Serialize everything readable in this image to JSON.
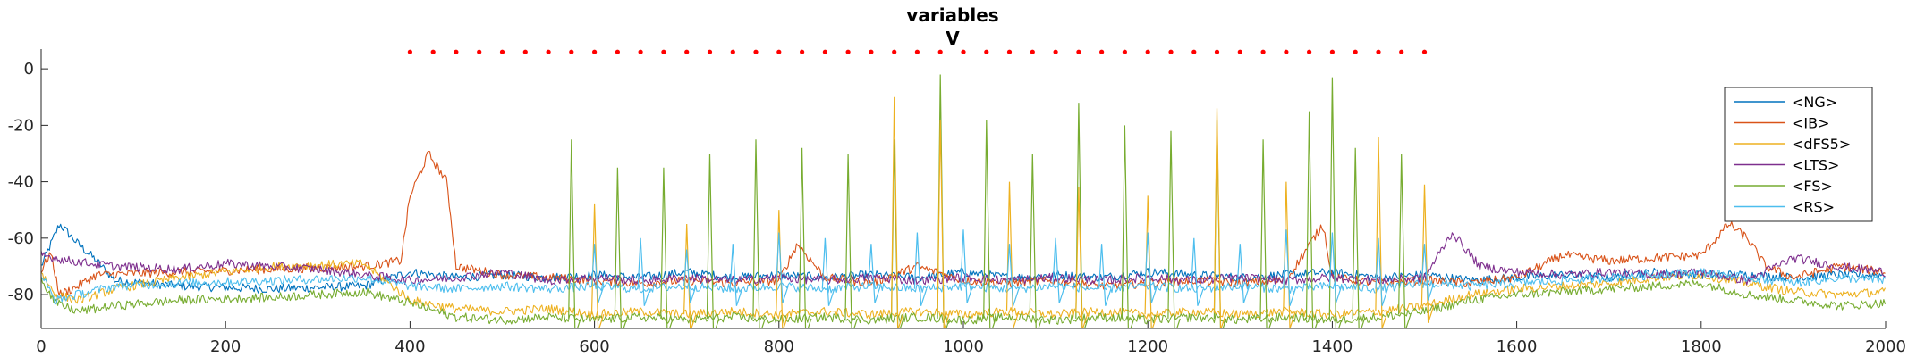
{
  "chart_data": {
    "type": "line",
    "title": "variables",
    "subtitle": "V",
    "xlabel": "",
    "ylabel": "",
    "xlim": [
      0,
      2000
    ],
    "ylim": [
      -92,
      7
    ],
    "xticks": [
      0,
      200,
      400,
      600,
      800,
      1000,
      1200,
      1400,
      1600,
      1800,
      2000
    ],
    "yticks": [
      0,
      -20,
      -40,
      -60,
      -80
    ],
    "grid": false,
    "legend_position": "top-right",
    "stimulus_markers": {
      "color": "#ff0000",
      "y": 6,
      "x": [
        400,
        425,
        450,
        475,
        500,
        525,
        550,
        575,
        600,
        625,
        650,
        675,
        700,
        725,
        750,
        775,
        800,
        825,
        850,
        875,
        900,
        925,
        950,
        975,
        1000,
        1025,
        1050,
        1075,
        1100,
        1125,
        1150,
        1175,
        1200,
        1225,
        1250,
        1275,
        1300,
        1325,
        1350,
        1375,
        1400,
        1425,
        1450,
        1475,
        1500
      ]
    },
    "series": [
      {
        "name": "<NG>",
        "color": "#0072bd",
        "points": [
          [
            0,
            -70
          ],
          [
            20,
            -55
          ],
          [
            40,
            -62
          ],
          [
            60,
            -68
          ],
          [
            80,
            -75
          ],
          [
            150,
            -77
          ],
          [
            250,
            -78
          ],
          [
            350,
            -77
          ],
          [
            400,
            -72
          ],
          [
            450,
            -74
          ],
          [
            500,
            -73
          ],
          [
            550,
            -74
          ],
          [
            600,
            -73
          ],
          [
            650,
            -74
          ],
          [
            700,
            -72
          ],
          [
            750,
            -74
          ],
          [
            800,
            -73
          ],
          [
            850,
            -74
          ],
          [
            900,
            -73
          ],
          [
            950,
            -74
          ],
          [
            1000,
            -72
          ],
          [
            1050,
            -74
          ],
          [
            1100,
            -73
          ],
          [
            1150,
            -74
          ],
          [
            1200,
            -72
          ],
          [
            1250,
            -73
          ],
          [
            1300,
            -74
          ],
          [
            1350,
            -73
          ],
          [
            1400,
            -72
          ],
          [
            1450,
            -74
          ],
          [
            1500,
            -73
          ],
          [
            1550,
            -75
          ],
          [
            1600,
            -74
          ],
          [
            1650,
            -73
          ],
          [
            1700,
            -74
          ],
          [
            1750,
            -72
          ],
          [
            1800,
            -73
          ],
          [
            1850,
            -73
          ],
          [
            1900,
            -74
          ],
          [
            1950,
            -73
          ],
          [
            2000,
            -73
          ]
        ]
      },
      {
        "name": "<IB>",
        "color": "#d95319",
        "points": [
          [
            0,
            -72
          ],
          [
            10,
            -65
          ],
          [
            20,
            -80
          ],
          [
            40,
            -77
          ],
          [
            60,
            -73
          ],
          [
            150,
            -72
          ],
          [
            250,
            -71
          ],
          [
            350,
            -70
          ],
          [
            390,
            -68
          ],
          [
            400,
            -45
          ],
          [
            420,
            -30
          ],
          [
            440,
            -40
          ],
          [
            450,
            -70
          ],
          [
            500,
            -73
          ],
          [
            600,
            -75
          ],
          [
            650,
            -76
          ],
          [
            700,
            -75
          ],
          [
            750,
            -76
          ],
          [
            800,
            -75
          ],
          [
            820,
            -62
          ],
          [
            850,
            -74
          ],
          [
            900,
            -76
          ],
          [
            950,
            -70
          ],
          [
            1000,
            -75
          ],
          [
            1050,
            -76
          ],
          [
            1100,
            -75
          ],
          [
            1150,
            -77
          ],
          [
            1200,
            -76
          ],
          [
            1250,
            -75
          ],
          [
            1300,
            -76
          ],
          [
            1350,
            -75
          ],
          [
            1390,
            -55
          ],
          [
            1400,
            -74
          ],
          [
            1450,
            -76
          ],
          [
            1500,
            -75
          ],
          [
            1550,
            -76
          ],
          [
            1600,
            -74
          ],
          [
            1650,
            -66
          ],
          [
            1700,
            -68
          ],
          [
            1750,
            -67
          ],
          [
            1800,
            -66
          ],
          [
            1830,
            -55
          ],
          [
            1850,
            -60
          ],
          [
            1870,
            -70
          ],
          [
            1900,
            -74
          ],
          [
            1950,
            -70
          ],
          [
            2000,
            -72
          ]
        ]
      },
      {
        "name": "<dFS5>",
        "color": "#edb120",
        "points": [
          [
            0,
            -72
          ],
          [
            15,
            -80
          ],
          [
            40,
            -82
          ],
          [
            80,
            -78
          ],
          [
            150,
            -74
          ],
          [
            250,
            -70
          ],
          [
            350,
            -69
          ],
          [
            400,
            -82
          ],
          [
            450,
            -85
          ],
          [
            500,
            -86
          ],
          [
            550,
            -85
          ],
          [
            600,
            -87
          ],
          [
            650,
            -86
          ],
          [
            700,
            -87
          ],
          [
            750,
            -86
          ],
          [
            800,
            -87
          ],
          [
            850,
            -86
          ],
          [
            900,
            -87
          ],
          [
            950,
            -86
          ],
          [
            1000,
            -87
          ],
          [
            1050,
            -86
          ],
          [
            1100,
            -87
          ],
          [
            1150,
            -86
          ],
          [
            1200,
            -87
          ],
          [
            1250,
            -86
          ],
          [
            1300,
            -87
          ],
          [
            1350,
            -86
          ],
          [
            1400,
            -87
          ],
          [
            1450,
            -86
          ],
          [
            1500,
            -84
          ],
          [
            1550,
            -80
          ],
          [
            1600,
            -78
          ],
          [
            1650,
            -77
          ],
          [
            1700,
            -76
          ],
          [
            1750,
            -74
          ],
          [
            1800,
            -73
          ],
          [
            1850,
            -76
          ],
          [
            1900,
            -79
          ],
          [
            1950,
            -80
          ],
          [
            2000,
            -79
          ]
        ]
      },
      {
        "name": "<LTS>",
        "color": "#7e2f8e",
        "points": [
          [
            0,
            -66
          ],
          [
            30,
            -68
          ],
          [
            80,
            -70
          ],
          [
            150,
            -71
          ],
          [
            200,
            -69
          ],
          [
            250,
            -70
          ],
          [
            300,
            -71
          ],
          [
            350,
            -73
          ],
          [
            400,
            -75
          ],
          [
            450,
            -74
          ],
          [
            500,
            -72
          ],
          [
            550,
            -75
          ],
          [
            600,
            -74
          ],
          [
            650,
            -75
          ],
          [
            700,
            -74
          ],
          [
            750,
            -75
          ],
          [
            800,
            -74
          ],
          [
            850,
            -75
          ],
          [
            900,
            -74
          ],
          [
            950,
            -75
          ],
          [
            1000,
            -74
          ],
          [
            1050,
            -75
          ],
          [
            1100,
            -74
          ],
          [
            1150,
            -75
          ],
          [
            1200,
            -74
          ],
          [
            1250,
            -75
          ],
          [
            1300,
            -74
          ],
          [
            1350,
            -75
          ],
          [
            1400,
            -74
          ],
          [
            1450,
            -75
          ],
          [
            1500,
            -74
          ],
          [
            1530,
            -58
          ],
          [
            1560,
            -70
          ],
          [
            1600,
            -72
          ],
          [
            1650,
            -73
          ],
          [
            1700,
            -72
          ],
          [
            1750,
            -73
          ],
          [
            1800,
            -72
          ],
          [
            1850,
            -75
          ],
          [
            1900,
            -67
          ],
          [
            1950,
            -70
          ],
          [
            2000,
            -72
          ]
        ]
      },
      {
        "name": "<FS>",
        "color": "#77ac30",
        "points": [
          [
            0,
            -74
          ],
          [
            15,
            -83
          ],
          [
            40,
            -86
          ],
          [
            80,
            -84
          ],
          [
            150,
            -82
          ],
          [
            250,
            -81
          ],
          [
            350,
            -79
          ],
          [
            400,
            -83
          ],
          [
            450,
            -88
          ],
          [
            500,
            -89
          ],
          [
            550,
            -88
          ],
          [
            600,
            -89
          ],
          [
            650,
            -88
          ],
          [
            700,
            -89
          ],
          [
            750,
            -88
          ],
          [
            800,
            -89
          ],
          [
            850,
            -88
          ],
          [
            900,
            -89
          ],
          [
            950,
            -88
          ],
          [
            1000,
            -89
          ],
          [
            1050,
            -88
          ],
          [
            1100,
            -89
          ],
          [
            1150,
            -88
          ],
          [
            1200,
            -89
          ],
          [
            1250,
            -88
          ],
          [
            1300,
            -89
          ],
          [
            1350,
            -88
          ],
          [
            1400,
            -89
          ],
          [
            1450,
            -88
          ],
          [
            1500,
            -86
          ],
          [
            1550,
            -82
          ],
          [
            1600,
            -80
          ],
          [
            1650,
            -79
          ],
          [
            1700,
            -78
          ],
          [
            1750,
            -77
          ],
          [
            1800,
            -76
          ],
          [
            1850,
            -80
          ],
          [
            1900,
            -82
          ],
          [
            1950,
            -84
          ],
          [
            2000,
            -83
          ]
        ]
      },
      {
        "name": "<RS>",
        "color": "#4dbeee",
        "points": [
          [
            0,
            -73
          ],
          [
            15,
            -82
          ],
          [
            40,
            -80
          ],
          [
            80,
            -77
          ],
          [
            150,
            -76
          ],
          [
            250,
            -75
          ],
          [
            350,
            -74
          ],
          [
            400,
            -77
          ],
          [
            450,
            -78
          ],
          [
            500,
            -77
          ],
          [
            550,
            -78
          ],
          [
            600,
            -77
          ],
          [
            650,
            -78
          ],
          [
            700,
            -77
          ],
          [
            750,
            -78
          ],
          [
            800,
            -77
          ],
          [
            850,
            -78
          ],
          [
            900,
            -77
          ],
          [
            950,
            -78
          ],
          [
            1000,
            -77
          ],
          [
            1050,
            -78
          ],
          [
            1100,
            -77
          ],
          [
            1150,
            -78
          ],
          [
            1200,
            -77
          ],
          [
            1250,
            -78
          ],
          [
            1300,
            -77
          ],
          [
            1350,
            -78
          ],
          [
            1400,
            -77
          ],
          [
            1450,
            -78
          ],
          [
            1500,
            -76
          ],
          [
            1550,
            -77
          ],
          [
            1600,
            -76
          ],
          [
            1650,
            -75
          ],
          [
            1700,
            -74
          ],
          [
            1750,
            -73
          ],
          [
            1800,
            -72
          ],
          [
            1850,
            -74
          ],
          [
            1900,
            -76
          ],
          [
            1950,
            -74
          ],
          [
            2000,
            -75
          ]
        ]
      }
    ],
    "spikes": [
      {
        "series": "<FS>",
        "x": [
          575,
          625,
          675,
          725,
          775,
          825,
          875,
          925,
          975,
          1025,
          1075,
          1125,
          1175,
          1225,
          1275,
          1325,
          1375,
          1400,
          1425,
          1475
        ],
        "peak": [
          -25,
          -35,
          -35,
          -30,
          -25,
          -28,
          -30,
          -25,
          -2,
          -18,
          -30,
          -12,
          -20,
          -22,
          -18,
          -25,
          -15,
          -3,
          -28,
          -30
        ]
      },
      {
        "series": "<dFS5>",
        "x": [
          600,
          700,
          800,
          925,
          975,
          1050,
          1125,
          1200,
          1275,
          1350,
          1450,
          1500
        ],
        "peak": [
          -48,
          -55,
          -50,
          -10,
          -18,
          -40,
          -42,
          -45,
          -14,
          -40,
          -24,
          -41
        ]
      },
      {
        "series": "<RS>",
        "x": [
          600,
          650,
          700,
          750,
          800,
          850,
          900,
          950,
          1000,
          1050,
          1100,
          1150,
          1200,
          1250,
          1300,
          1350,
          1400,
          1450,
          1500
        ],
        "peak": [
          -62,
          -60,
          -64,
          -62,
          -58,
          -60,
          -62,
          -58,
          -57,
          -62,
          -60,
          -62,
          -58,
          -60,
          -62,
          -57,
          -58,
          -60,
          -62
        ]
      }
    ]
  }
}
